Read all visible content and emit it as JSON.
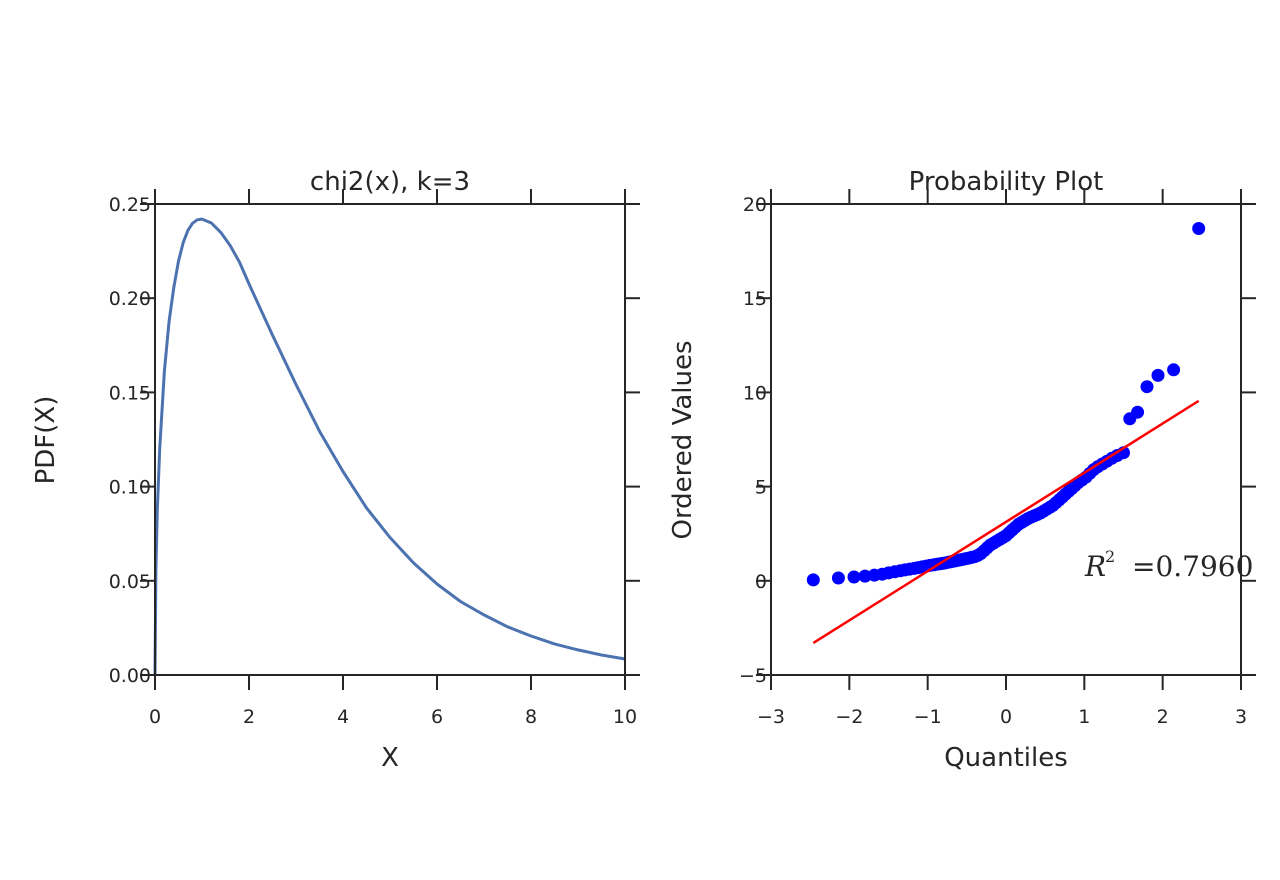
{
  "chart_data": [
    {
      "type": "line",
      "title": "chi2(x), k=3",
      "xlabel": "X",
      "ylabel": "PDF(X)",
      "xlim": [
        0,
        10
      ],
      "ylim": [
        0,
        0.25
      ],
      "xticks": [
        0,
        2,
        4,
        6,
        8,
        10
      ],
      "xtick_labels": [
        "0",
        "2",
        "4",
        "6",
        "8",
        "10"
      ],
      "yticks": [
        0,
        0.05,
        0.1,
        0.15,
        0.2,
        0.25
      ],
      "ytick_labels": [
        "0.00",
        "0.05",
        "0.10",
        "0.15",
        "0.20",
        "0.25"
      ],
      "grid": false,
      "line_color": "#4c72b0",
      "x": [
        0,
        0.02,
        0.05,
        0.1,
        0.2,
        0.3,
        0.4,
        0.5,
        0.6,
        0.7,
        0.8,
        0.9,
        1.0,
        1.2,
        1.4,
        1.6,
        1.8,
        2.0,
        2.5,
        3.0,
        3.5,
        4.0,
        4.5,
        5.0,
        5.5,
        6.0,
        6.5,
        7.0,
        7.5,
        8.0,
        8.5,
        9.0,
        9.5,
        10.0
      ],
      "y": [
        0,
        0.0559,
        0.0874,
        0.12,
        0.1614,
        0.1878,
        0.2057,
        0.2197,
        0.2295,
        0.236,
        0.2398,
        0.2416,
        0.242,
        0.2399,
        0.2349,
        0.2279,
        0.219,
        0.2076,
        0.1804,
        0.1542,
        0.1294,
        0.108,
        0.0887,
        0.073,
        0.0595,
        0.0483,
        0.039,
        0.0319,
        0.0256,
        0.0207,
        0.0165,
        0.0133,
        0.0106,
        0.0085
      ]
    },
    {
      "type": "scatter",
      "title": "Probability Plot",
      "xlabel": "Quantiles",
      "ylabel": "Ordered Values",
      "xlim": [
        -3,
        3
      ],
      "ylim": [
        -5,
        20
      ],
      "xticks": [
        -3,
        -2,
        -1,
        0,
        1,
        2,
        3
      ],
      "xtick_labels": [
        "−3",
        "−2",
        "−1",
        "0",
        "1",
        "2",
        "3"
      ],
      "yticks": [
        -5,
        0,
        5,
        10,
        15,
        20
      ],
      "ytick_labels": [
        "−5",
        "0",
        "5",
        "10",
        "15",
        "20"
      ],
      "grid": false,
      "marker_color": "#0000ff",
      "fit_color": "#ff0000",
      "fit_line": {
        "x": [
          -2.46,
          2.46
        ],
        "y": [
          -3.3,
          9.55
        ]
      },
      "annotation": {
        "symbol": "R",
        "superscript": "2",
        "text": "=0.7960"
      },
      "points": [
        {
          "x": -2.46,
          "y": 0.05
        },
        {
          "x": -2.14,
          "y": 0.15
        },
        {
          "x": -1.94,
          "y": 0.2
        },
        {
          "x": -1.8,
          "y": 0.25
        },
        {
          "x": -1.68,
          "y": 0.3
        },
        {
          "x": -1.58,
          "y": 0.35
        },
        {
          "x": -1.5,
          "y": 0.42
        },
        {
          "x": -1.42,
          "y": 0.48
        },
        {
          "x": -1.35,
          "y": 0.53
        },
        {
          "x": -1.29,
          "y": 0.58
        },
        {
          "x": -1.23,
          "y": 0.62
        },
        {
          "x": -1.17,
          "y": 0.66
        },
        {
          "x": -1.12,
          "y": 0.7
        },
        {
          "x": -1.07,
          "y": 0.74
        },
        {
          "x": -1.02,
          "y": 0.78
        },
        {
          "x": -0.97,
          "y": 0.82
        },
        {
          "x": -0.92,
          "y": 0.85
        },
        {
          "x": -0.88,
          "y": 0.88
        },
        {
          "x": -0.84,
          "y": 0.9
        },
        {
          "x": -0.8,
          "y": 0.93
        },
        {
          "x": -0.76,
          "y": 0.96
        },
        {
          "x": -0.72,
          "y": 1.0
        },
        {
          "x": -0.68,
          "y": 1.03
        },
        {
          "x": -0.64,
          "y": 1.06
        },
        {
          "x": -0.6,
          "y": 1.1
        },
        {
          "x": -0.56,
          "y": 1.13
        },
        {
          "x": -0.52,
          "y": 1.17
        },
        {
          "x": -0.48,
          "y": 1.2
        },
        {
          "x": -0.44,
          "y": 1.24
        },
        {
          "x": -0.4,
          "y": 1.28
        },
        {
          "x": -0.36,
          "y": 1.35
        },
        {
          "x": -0.32,
          "y": 1.45
        },
        {
          "x": -0.28,
          "y": 1.6
        },
        {
          "x": -0.24,
          "y": 1.75
        },
        {
          "x": -0.2,
          "y": 1.9
        },
        {
          "x": -0.16,
          "y": 2.0
        },
        {
          "x": -0.12,
          "y": 2.1
        },
        {
          "x": -0.08,
          "y": 2.2
        },
        {
          "x": -0.04,
          "y": 2.3
        },
        {
          "x": 0.0,
          "y": 2.4
        },
        {
          "x": 0.04,
          "y": 2.55
        },
        {
          "x": 0.08,
          "y": 2.7
        },
        {
          "x": 0.12,
          "y": 2.85
        },
        {
          "x": 0.16,
          "y": 3.0
        },
        {
          "x": 0.2,
          "y": 3.1
        },
        {
          "x": 0.24,
          "y": 3.2
        },
        {
          "x": 0.28,
          "y": 3.3
        },
        {
          "x": 0.32,
          "y": 3.38
        },
        {
          "x": 0.36,
          "y": 3.45
        },
        {
          "x": 0.4,
          "y": 3.52
        },
        {
          "x": 0.44,
          "y": 3.6
        },
        {
          "x": 0.48,
          "y": 3.7
        },
        {
          "x": 0.52,
          "y": 3.8
        },
        {
          "x": 0.56,
          "y": 3.9
        },
        {
          "x": 0.6,
          "y": 4.0
        },
        {
          "x": 0.64,
          "y": 4.15
        },
        {
          "x": 0.68,
          "y": 4.3
        },
        {
          "x": 0.72,
          "y": 4.45
        },
        {
          "x": 0.76,
          "y": 4.6
        },
        {
          "x": 0.8,
          "y": 4.75
        },
        {
          "x": 0.84,
          "y": 4.9
        },
        {
          "x": 0.88,
          "y": 5.05
        },
        {
          "x": 0.92,
          "y": 5.2
        },
        {
          "x": 0.97,
          "y": 5.35
        },
        {
          "x": 1.02,
          "y": 5.5
        },
        {
          "x": 1.07,
          "y": 5.7
        },
        {
          "x": 1.12,
          "y": 5.9
        },
        {
          "x": 1.17,
          "y": 6.05
        },
        {
          "x": 1.23,
          "y": 6.2
        },
        {
          "x": 1.29,
          "y": 6.35
        },
        {
          "x": 1.35,
          "y": 6.5
        },
        {
          "x": 1.42,
          "y": 6.65
        },
        {
          "x": 1.5,
          "y": 6.8
        },
        {
          "x": 1.58,
          "y": 8.6
        },
        {
          "x": 1.68,
          "y": 8.95
        },
        {
          "x": 1.8,
          "y": 10.3
        },
        {
          "x": 1.94,
          "y": 10.9
        },
        {
          "x": 2.14,
          "y": 11.2
        },
        {
          "x": 2.46,
          "y": 18.7
        }
      ]
    }
  ]
}
